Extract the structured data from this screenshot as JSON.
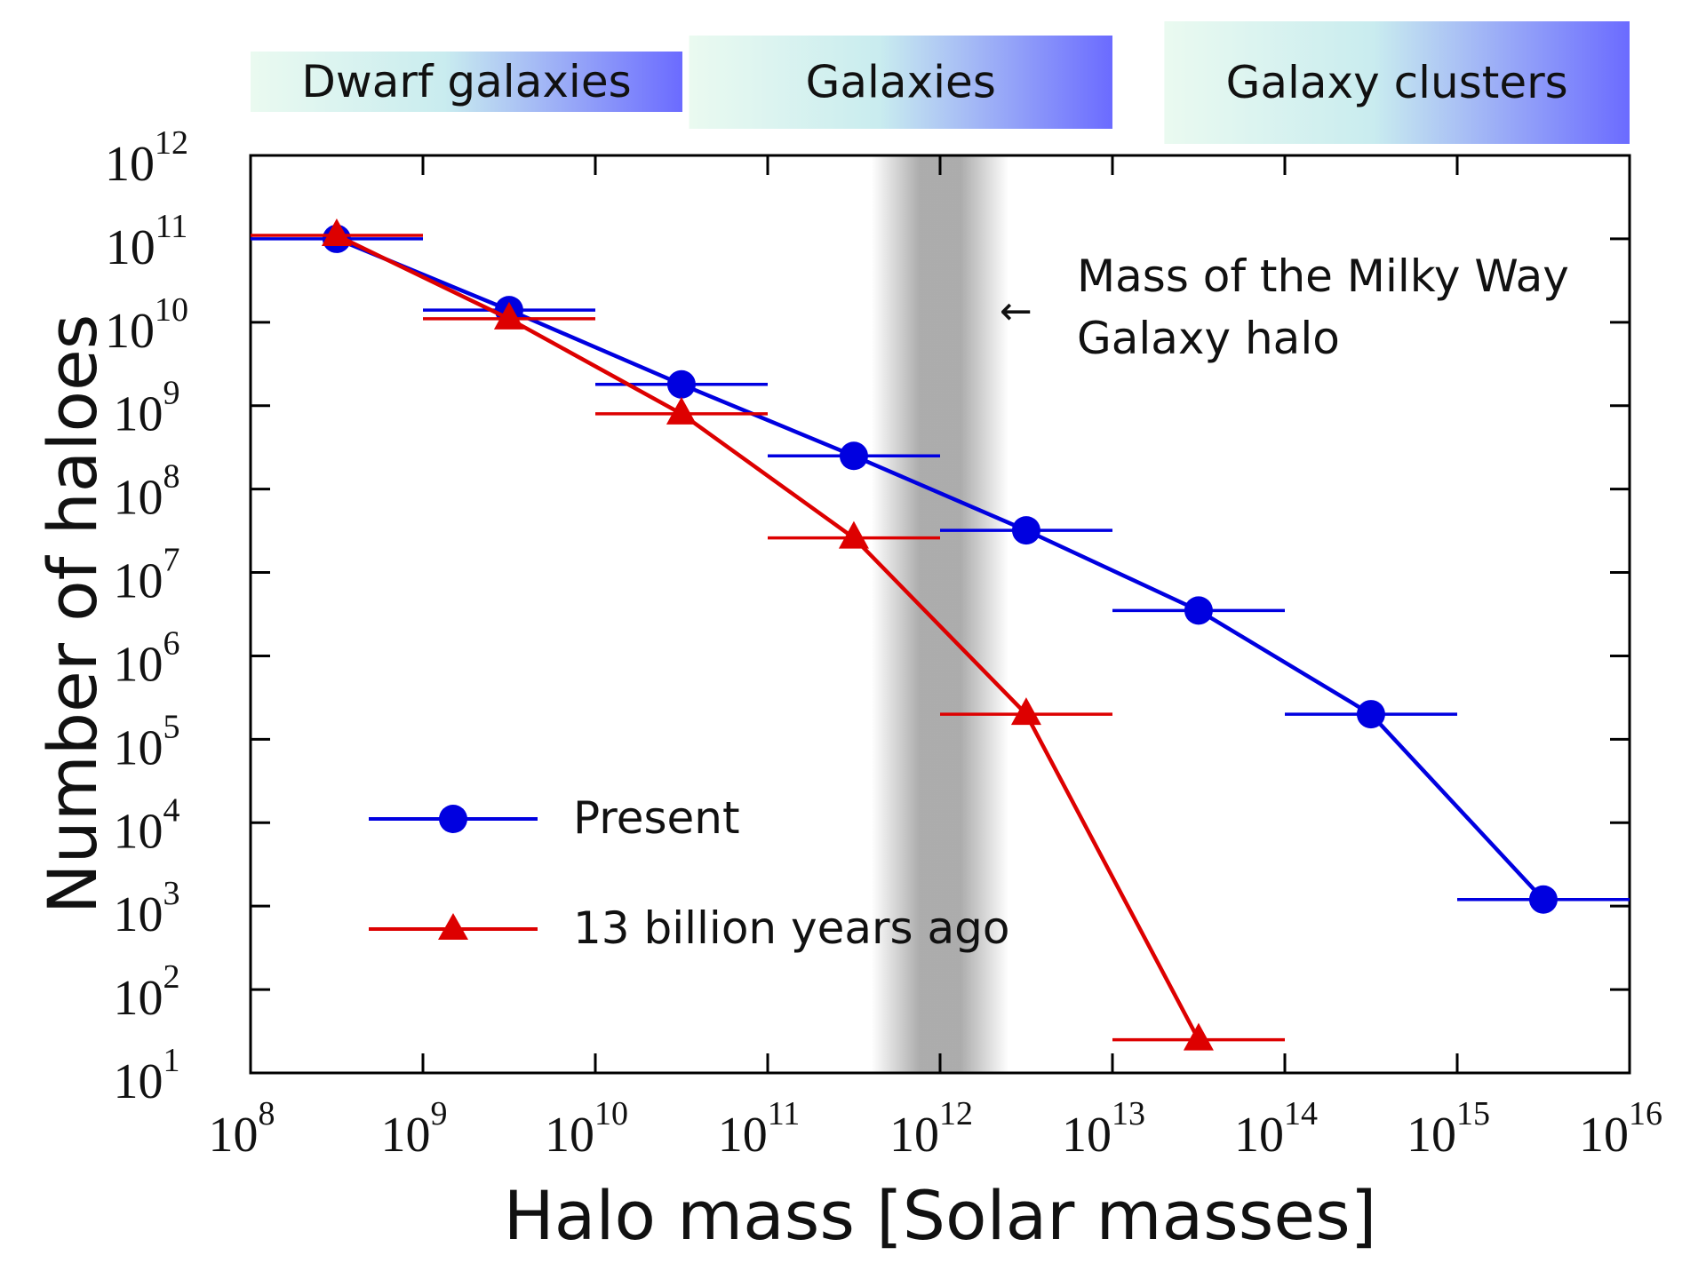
{
  "chart_data": {
    "type": "line",
    "x_scale": "log",
    "y_scale": "log",
    "xlim": [
      100000000.0,
      1e+16
    ],
    "ylim": [
      10,
      1000000000000.0
    ],
    "xlabel": "Halo mass [Solar masses]",
    "ylabel": "Number of haloes",
    "x_tick_exponents": [
      8,
      9,
      10,
      11,
      12,
      13,
      14,
      15,
      16
    ],
    "y_tick_exponents": [
      1,
      2,
      3,
      4,
      5,
      6,
      7,
      8,
      9,
      10,
      11,
      12
    ],
    "tick_base": "10",
    "grid": false,
    "legend": "lower-left",
    "series": [
      {
        "name": "Present",
        "color": "#0000e0",
        "marker": "circle",
        "x": [
          316000000.0,
          3160000000.0,
          31600000000.0,
          316000000000.0,
          3160000000000.0,
          31600000000000.0,
          316000000000000.0,
          3160000000000000.0
        ],
        "x_bins": [
          [
            100000000.0,
            1000000000.0
          ],
          [
            1000000000.0,
            10000000000.0
          ],
          [
            10000000000.0,
            100000000000.0
          ],
          [
            100000000000.0,
            1000000000000.0
          ],
          [
            1000000000000.0,
            10000000000000.0
          ],
          [
            10000000000000.0,
            100000000000000.0
          ],
          [
            100000000000000.0,
            1000000000000000.0
          ],
          [
            1000000000000000.0,
            1e+16
          ]
        ],
        "y": [
          100000000000.0,
          14000000000.0,
          1800000000.0,
          250000000.0,
          32000000.0,
          3500000.0,
          200000.0,
          1200.0
        ]
      },
      {
        "name": "13 billion years ago",
        "color": "#dd0000",
        "marker": "triangle",
        "x": [
          316000000.0,
          3160000000.0,
          31600000000.0,
          316000000000.0,
          3160000000000.0,
          31600000000000.0
        ],
        "x_bins": [
          [
            100000000.0,
            1000000000.0
          ],
          [
            1000000000.0,
            10000000000.0
          ],
          [
            10000000000.0,
            100000000000.0
          ],
          [
            100000000000.0,
            1000000000000.0
          ],
          [
            1000000000000.0,
            10000000000000.0
          ],
          [
            10000000000000.0,
            100000000000000.0
          ]
        ],
        "y": [
          110000000000.0,
          11000000000.0,
          800000000.0,
          26000000.0,
          200000.0,
          25
        ]
      }
    ],
    "shaded_band": {
      "x_range": [
        400000000000.0,
        2500000000000.0
      ],
      "color": "#9e9e9e"
    },
    "annotation": {
      "lines": [
        "Mass of the Milky Way",
        "Galaxy halo"
      ],
      "arrow": "←"
    },
    "category_bands": [
      {
        "label": "Dwarf galaxies",
        "x_range": [
          100000000.0,
          32000000000.0
        ]
      },
      {
        "label": "Galaxies",
        "x_range": [
          35000000000.0,
          10000000000000.0
        ]
      },
      {
        "label": "Galaxy clusters",
        "x_range": [
          20000000000000.0,
          1e+16
        ]
      }
    ]
  }
}
